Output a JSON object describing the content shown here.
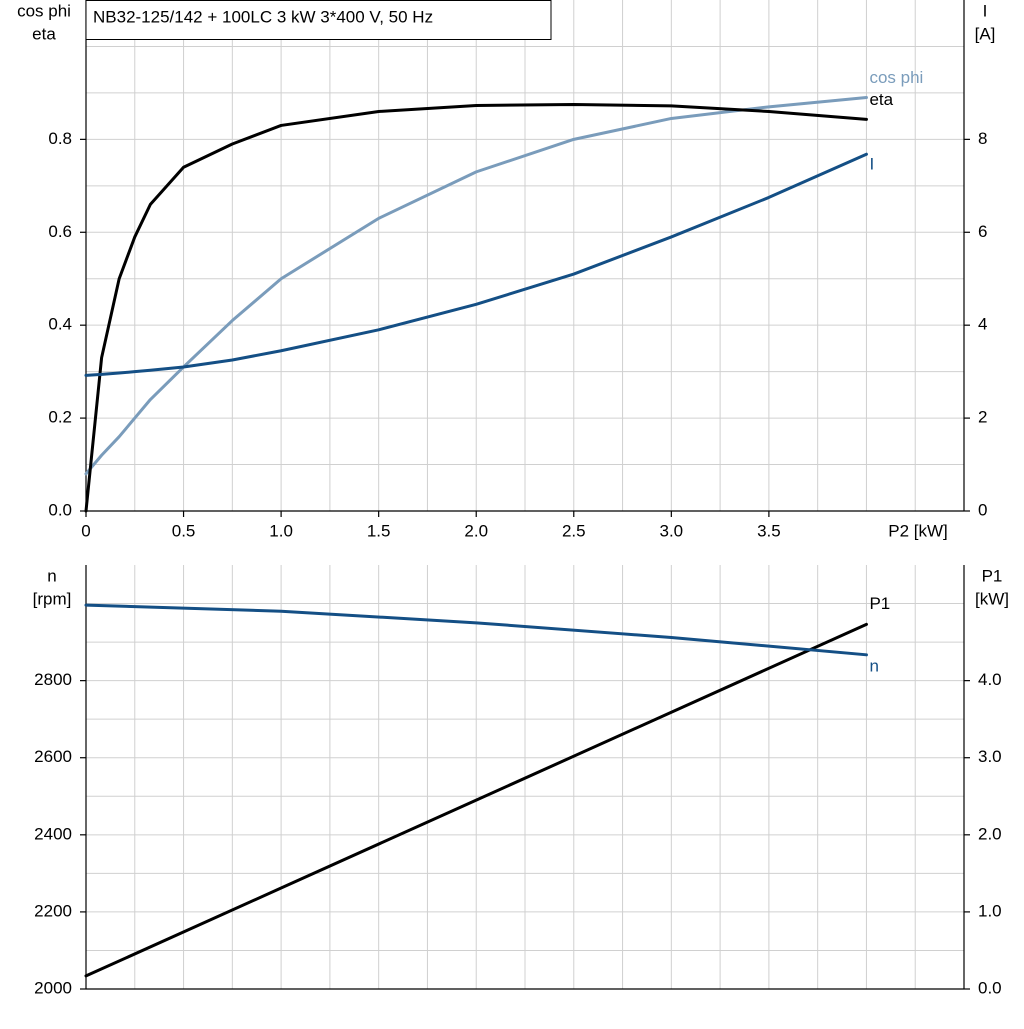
{
  "chart_data": [
    {
      "type": "line",
      "title": "NB32-125/142 + 100LC   3 kW   3*400 V, 50 Hz",
      "ylabel": [
        "cos phi",
        "eta"
      ],
      "y2label": [
        "I",
        "[A]"
      ],
      "xlabel": "P2 [kW]",
      "xlim": [
        0,
        4.5
      ],
      "xticks": [
        0,
        0.5,
        {
          "value": 1,
          "label": "1.0"
        },
        1.5,
        {
          "value": 2,
          "label": "2.0"
        },
        2.5,
        {
          "value": 3,
          "label": "3.0"
        },
        3.5
      ],
      "xgrid": [
        0.25,
        0.5,
        0.75,
        1,
        1.25,
        1.5,
        1.75,
        2,
        2.25,
        2.5,
        2.75,
        3,
        3.25,
        3.5,
        3.75,
        4,
        4.25
      ],
      "ylim": [
        0,
        1.1
      ],
      "yticks": [
        {
          "value": 0,
          "label": "0.0"
        },
        0.2,
        0.4,
        0.6,
        0.8
      ],
      "ygrid": [
        0.1,
        0.2,
        0.3,
        0.4,
        0.5,
        0.6,
        0.7,
        0.8,
        0.9,
        1.0
      ],
      "y2lim": [
        0,
        11
      ],
      "y2ticks": [
        0,
        2,
        4,
        6,
        8
      ],
      "x": [
        0,
        0.08,
        0.17,
        0.25,
        0.33,
        0.5,
        0.75,
        1.0,
        1.5,
        2.0,
        2.5,
        3.0,
        3.5,
        4.0
      ],
      "series": [
        {
          "name": "cos phi",
          "color": "#7a9cbb",
          "axis": "y",
          "values": [
            0.08,
            0.12,
            0.16,
            0.2,
            0.24,
            0.31,
            0.41,
            0.5,
            0.63,
            0.73,
            0.8,
            0.845,
            0.87,
            0.89
          ]
        },
        {
          "name": "eta",
          "color": "#000000",
          "axis": "y",
          "values": [
            0,
            0.33,
            0.5,
            0.59,
            0.66,
            0.74,
            0.79,
            0.83,
            0.86,
            0.873,
            0.875,
            0.872,
            0.86,
            0.843
          ]
        },
        {
          "name": "I",
          "color": "#144f85",
          "axis": "y2",
          "values": [
            2.92,
            2.94,
            2.97,
            3.0,
            3.03,
            3.1,
            3.25,
            3.45,
            3.9,
            4.45,
            5.1,
            5.9,
            6.75,
            7.68
          ]
        }
      ]
    },
    {
      "type": "line",
      "ylabel": [
        "n",
        "[rpm]"
      ],
      "y2label": [
        "P1",
        "[kW]"
      ],
      "xlim": [
        0,
        4.5
      ],
      "xgrid": [
        0.25,
        0.5,
        0.75,
        1,
        1.25,
        1.5,
        1.75,
        2,
        2.25,
        2.5,
        2.75,
        3,
        3.25,
        3.5,
        3.75,
        4,
        4.25
      ],
      "ylim": [
        2000,
        3100
      ],
      "yticks": [
        2000,
        2200,
        2400,
        2600,
        2800
      ],
      "ygrid": [
        2100,
        2200,
        2300,
        2400,
        2500,
        2600,
        2700,
        2800,
        2900,
        3000
      ],
      "y2lim": [
        0,
        5.5
      ],
      "y2ticks": [
        {
          "value": 0,
          "label": "0.0"
        },
        {
          "value": 1,
          "label": "1.0"
        },
        {
          "value": 2,
          "label": "2.0"
        },
        {
          "value": 3,
          "label": "3.0"
        },
        {
          "value": 4,
          "label": "4.0"
        }
      ],
      "x": [
        0,
        1,
        2,
        3,
        4
      ],
      "series": [
        {
          "name": "P1",
          "color": "#000000",
          "axis": "y2",
          "values": [
            0.17,
            1.31,
            2.45,
            3.59,
            4.73
          ]
        },
        {
          "name": "n",
          "color": "#144f85",
          "axis": "y",
          "values": [
            2996,
            2980,
            2950,
            2912,
            2867
          ]
        }
      ]
    }
  ]
}
